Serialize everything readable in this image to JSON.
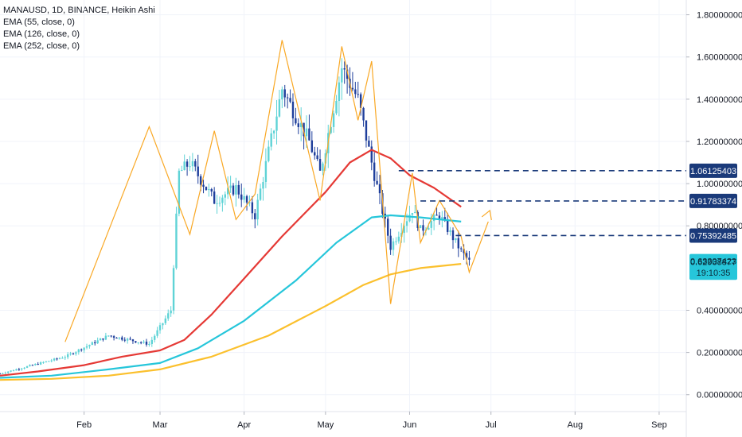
{
  "legend": {
    "symbol_line": "MANAUSD, 1D, BINANCE, Heikin Ashi",
    "ema1": "EMA (55, close, 0)",
    "ema2": "EMA (126, close, 0)",
    "ema3": "EMA (252, close, 0)"
  },
  "colors": {
    "up_candle": "#5fd3d6",
    "down_candle": "#1f3f9c",
    "ema55": "#e53935",
    "ema126": "#26c6da",
    "ema252": "#fbc02d",
    "zigzag": "#f9a825",
    "level_line": "#1a3a7a",
    "price_badge": "#26c6da"
  },
  "chart_data": {
    "type": "line",
    "title": "MANAUSD, 1D, BINANCE, Heikin Ashi",
    "xlabel": "",
    "ylabel": "",
    "x_tick_labels": [
      "Feb",
      "Mar",
      "Apr",
      "May",
      "Jun",
      "Jul",
      "Aug",
      "Sep"
    ],
    "y_tick_labels": [
      "0.00000000",
      "0.20000000",
      "0.40000000",
      "0.80000000",
      "1.00000000",
      "1.20000000",
      "1.40000000",
      "1.60000000",
      "1.80000000"
    ],
    "y_ticks": [
      0.0,
      0.2,
      0.4,
      0.8,
      1.0,
      1.2,
      1.4,
      1.6,
      1.8
    ],
    "ylim": [
      -0.08,
      1.87
    ],
    "x_range": [
      "2021-01-01",
      "2021-09-11"
    ],
    "series": [
      {
        "name": "EMA (55, close, 0)",
        "x": [
          "2021-01-01",
          "2021-01-15",
          "2021-02-01",
          "2021-02-15",
          "2021-03-01",
          "2021-03-10",
          "2021-03-20",
          "2021-04-01",
          "2021-04-15",
          "2021-05-01",
          "2021-05-10",
          "2021-05-18",
          "2021-05-25",
          "2021-06-01",
          "2021-06-10",
          "2021-06-20"
        ],
        "values": [
          0.09,
          0.11,
          0.14,
          0.18,
          0.21,
          0.26,
          0.38,
          0.55,
          0.75,
          0.96,
          1.1,
          1.16,
          1.12,
          1.04,
          0.98,
          0.89
        ]
      },
      {
        "name": "EMA (126, close, 0)",
        "x": [
          "2021-01-01",
          "2021-01-20",
          "2021-02-10",
          "2021-03-01",
          "2021-03-15",
          "2021-04-01",
          "2021-04-20",
          "2021-05-05",
          "2021-05-18",
          "2021-05-25",
          "2021-06-05",
          "2021-06-20"
        ],
        "values": [
          0.08,
          0.09,
          0.12,
          0.15,
          0.22,
          0.35,
          0.54,
          0.72,
          0.84,
          0.85,
          0.84,
          0.82
        ]
      },
      {
        "name": "EMA (252, close, 0)",
        "x": [
          "2021-01-01",
          "2021-01-20",
          "2021-02-10",
          "2021-03-01",
          "2021-03-20",
          "2021-04-10",
          "2021-05-01",
          "2021-05-15",
          "2021-05-25",
          "2021-06-05",
          "2021-06-20"
        ],
        "values": [
          0.07,
          0.075,
          0.09,
          0.12,
          0.18,
          0.28,
          0.42,
          0.52,
          0.57,
          0.6,
          0.62
        ]
      }
    ],
    "zigzag": {
      "x": [
        "2021-01-25",
        "2021-02-25",
        "2021-03-12",
        "2021-03-21",
        "2021-03-29",
        "2021-04-05",
        "2021-04-15",
        "2021-04-29",
        "2021-05-07",
        "2021-05-13",
        "2021-05-18",
        "2021-05-25",
        "2021-06-02",
        "2021-06-05",
        "2021-06-12",
        "2021-06-20",
        "2021-06-23",
        "2021-06-30"
      ],
      "values": [
        0.25,
        1.27,
        0.76,
        1.25,
        0.83,
        0.95,
        1.68,
        0.92,
        1.65,
        1.3,
        1.58,
        0.43,
        1.05,
        0.72,
        0.92,
        0.75,
        0.58,
        0.82
      ]
    },
    "levels": [
      {
        "label": "1.06125403",
        "value": 1.06125403
      },
      {
        "label": "0.91783374",
        "value": 0.91783374
      },
      {
        "label": "0.75392485",
        "value": 0.75392485
      }
    ],
    "price_labels": [
      {
        "label": "0.63307423",
        "value": 0.63307423
      },
      {
        "label": "0.62938877",
        "value": 0.62938877
      },
      {
        "label": "19:10:35",
        "value": 0.578
      }
    ]
  }
}
